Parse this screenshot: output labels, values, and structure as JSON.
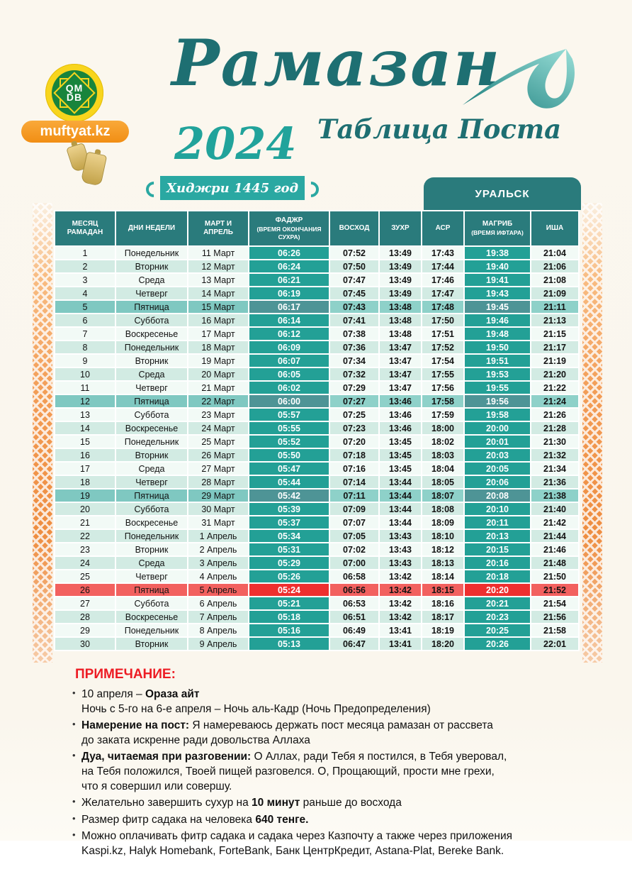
{
  "header": {
    "title": "Рамазан",
    "subtitle": "Таблица Поста",
    "year": "2024",
    "hijri_label": "Хиджри 1445 год",
    "logo_acronym_line1": "QM",
    "logo_acronym_line2": "DB",
    "site_label": "muftyat.kz",
    "city": "УРАЛЬСК"
  },
  "colors": {
    "dark_teal": "#2a7b7c",
    "bright_teal": "#23a096",
    "ribbon_teal": "#2aa8a2",
    "friday_row": "#7fc8c1",
    "friday_highlight": "#4e9496",
    "red_row": "#f2615f",
    "red_highlight": "#ee2f2f",
    "row_light": "#f2faf6",
    "row_alt": "#d2ebe3",
    "orange_ornament": "#f09049",
    "muftyat_orange": "#f18e14",
    "logo_green": "#18843c",
    "logo_yellow": "#f8d51d",
    "note_red": "#ed1c24",
    "title_teal": "#1e6f72"
  },
  "table": {
    "columns": [
      {
        "main": "МЕСЯЦ РАМАДАН",
        "sub": ""
      },
      {
        "main": "ДНИ НЕДЕЛИ",
        "sub": ""
      },
      {
        "main": "МАРТ И АПРЕЛЬ",
        "sub": ""
      },
      {
        "main": "ФАДЖР",
        "sub": "(время окончания сухра)"
      },
      {
        "main": "ВОСХОД",
        "sub": ""
      },
      {
        "main": "ЗУХР",
        "sub": ""
      },
      {
        "main": "АСР",
        "sub": ""
      },
      {
        "main": "МАГРИБ",
        "sub": "(время ифтара)"
      },
      {
        "main": "ИША",
        "sub": ""
      }
    ],
    "rows": [
      [
        "1",
        "Понедельник",
        "11 Март",
        "06:26",
        "07:52",
        "13:49",
        "17:43",
        "19:38",
        "21:04",
        ""
      ],
      [
        "2",
        "Вторник",
        "12 Март",
        "06:24",
        "07:50",
        "13:49",
        "17:44",
        "19:40",
        "21:06",
        ""
      ],
      [
        "3",
        "Среда",
        "13 Март",
        "06:21",
        "07:47",
        "13:49",
        "17:46",
        "19:41",
        "21:08",
        ""
      ],
      [
        "4",
        "Четверг",
        "14 Март",
        "06:19",
        "07:45",
        "13:49",
        "17:47",
        "19:43",
        "21:09",
        ""
      ],
      [
        "5",
        "Пятница",
        "15 Март",
        "06:17",
        "07:43",
        "13:48",
        "17:48",
        "19:45",
        "21:11",
        "friday"
      ],
      [
        "6",
        "Суббота",
        "16 Март",
        "06:14",
        "07:41",
        "13:48",
        "17:50",
        "19:46",
        "21:13",
        ""
      ],
      [
        "7",
        "Воскресенье",
        "17 Март",
        "06:12",
        "07:38",
        "13:48",
        "17:51",
        "19:48",
        "21:15",
        ""
      ],
      [
        "8",
        "Понедельник",
        "18 Март",
        "06:09",
        "07:36",
        "13:47",
        "17:52",
        "19:50",
        "21:17",
        ""
      ],
      [
        "9",
        "Вторник",
        "19 Март",
        "06:07",
        "07:34",
        "13:47",
        "17:54",
        "19:51",
        "21:19",
        ""
      ],
      [
        "10",
        "Среда",
        "20 Март",
        "06:05",
        "07:32",
        "13:47",
        "17:55",
        "19:53",
        "21:20",
        ""
      ],
      [
        "11",
        "Четверг",
        "21 Март",
        "06:02",
        "07:29",
        "13:47",
        "17:56",
        "19:55",
        "21:22",
        ""
      ],
      [
        "12",
        "Пятница",
        "22 Март",
        "06:00",
        "07:27",
        "13:46",
        "17:58",
        "19:56",
        "21:24",
        "friday"
      ],
      [
        "13",
        "Суббота",
        "23 Март",
        "05:57",
        "07:25",
        "13:46",
        "17:59",
        "19:58",
        "21:26",
        ""
      ],
      [
        "14",
        "Воскресенье",
        "24 Март",
        "05:55",
        "07:23",
        "13:46",
        "18:00",
        "20:00",
        "21:28",
        ""
      ],
      [
        "15",
        "Понедельник",
        "25 Март",
        "05:52",
        "07:20",
        "13:45",
        "18:02",
        "20:01",
        "21:30",
        ""
      ],
      [
        "16",
        "Вторник",
        "26 Март",
        "05:50",
        "07:18",
        "13:45",
        "18:03",
        "20:03",
        "21:32",
        ""
      ],
      [
        "17",
        "Среда",
        "27 Март",
        "05:47",
        "07:16",
        "13:45",
        "18:04",
        "20:05",
        "21:34",
        ""
      ],
      [
        "18",
        "Четверг",
        "28 Март",
        "05:44",
        "07:14",
        "13:44",
        "18:05",
        "20:06",
        "21:36",
        ""
      ],
      [
        "19",
        "Пятница",
        "29 Март",
        "05:42",
        "07:11",
        "13:44",
        "18:07",
        "20:08",
        "21:38",
        "friday"
      ],
      [
        "20",
        "Суббота",
        "30 Март",
        "05:39",
        "07:09",
        "13:44",
        "18:08",
        "20:10",
        "21:40",
        ""
      ],
      [
        "21",
        "Воскресенье",
        "31 Март",
        "05:37",
        "07:07",
        "13:44",
        "18:09",
        "20:11",
        "21:42",
        ""
      ],
      [
        "22",
        "Понедельник",
        "1 Апрель",
        "05:34",
        "07:05",
        "13:43",
        "18:10",
        "20:13",
        "21:44",
        ""
      ],
      [
        "23",
        "Вторник",
        "2 Апрель",
        "05:31",
        "07:02",
        "13:43",
        "18:12",
        "20:15",
        "21:46",
        ""
      ],
      [
        "24",
        "Среда",
        "3 Апрель",
        "05:29",
        "07:00",
        "13:43",
        "18:13",
        "20:16",
        "21:48",
        ""
      ],
      [
        "25",
        "Четверг",
        "4 Апрель",
        "05:26",
        "06:58",
        "13:42",
        "18:14",
        "20:18",
        "21:50",
        ""
      ],
      [
        "26",
        "Пятница",
        "5 Апрель",
        "05:24",
        "06:56",
        "13:42",
        "18:15",
        "20:20",
        "21:52",
        "red"
      ],
      [
        "27",
        "Суббота",
        "6 Апрель",
        "05:21",
        "06:53",
        "13:42",
        "18:16",
        "20:21",
        "21:54",
        ""
      ],
      [
        "28",
        "Воскресенье",
        "7 Апрель",
        "05:18",
        "06:51",
        "13:42",
        "18:17",
        "20:23",
        "21:56",
        ""
      ],
      [
        "29",
        "Понедельник",
        "8 Апрель",
        "05:16",
        "06:49",
        "13:41",
        "18:19",
        "20:25",
        "21:58",
        ""
      ],
      [
        "30",
        "Вторник",
        "9 Апрель",
        "05:13",
        "06:47",
        "13:41",
        "18:20",
        "20:26",
        "22:01",
        ""
      ]
    ]
  },
  "notes": {
    "title": "ПРИМЕЧАНИЕ:",
    "items": [
      [
        {
          "t": "10 апреля – ",
          "b": false
        },
        {
          "t": "Ораза айт",
          "b": true
        },
        {
          "t": "\nНочь с 5-го на 6-е апреля – Ночь аль-Кадр (Ночь Предопределения)",
          "b": false
        }
      ],
      [
        {
          "t": "Намерение на пост: ",
          "b": true
        },
        {
          "t": "Я намереваюсь держать пост месяца рамазан от рассвета\nдо заката искренне ради довольства Аллаха",
          "b": false
        }
      ],
      [
        {
          "t": "Дуа, читаемая при разговении: ",
          "b": true
        },
        {
          "t": "О Аллах, ради Тебя я постился, в Тебя уверовал,\nна Тебя положился, Твоей пищей разговелся. О, Прощающий, прости мне грехи,\nчто я совершил или совершу.",
          "b": false
        }
      ],
      [
        {
          "t": "Желательно завершить сухур на ",
          "b": false
        },
        {
          "t": "10 минут",
          "b": true
        },
        {
          "t": " раньше до восхода",
          "b": false
        }
      ],
      [
        {
          "t": "Размер фитр садака на человека ",
          "b": false
        },
        {
          "t": "640 тенге.",
          "b": true
        }
      ],
      [
        {
          "t": "Можно оплачивать фитр садака и садака через Казпочту а также через приложения\nKaspi.kz, Halyk Homebank, ForteBank, Банк ЦентрКредит, Astana-Plat, Bereke Bank.",
          "b": false
        }
      ]
    ]
  }
}
